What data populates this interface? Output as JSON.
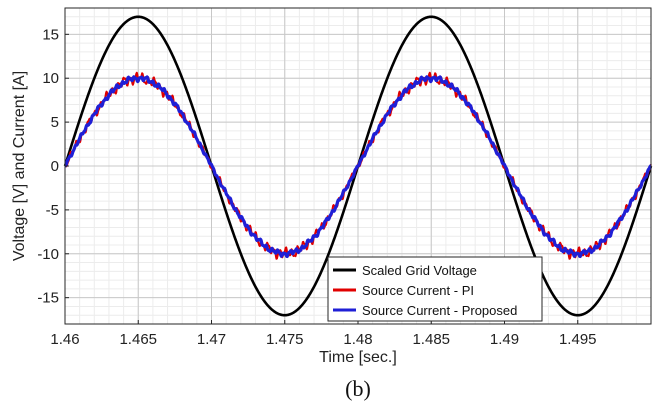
{
  "chart_data": {
    "type": "line",
    "title": "",
    "xlabel": "Time [sec.]",
    "ylabel": "Voltage [V] and Current [A]",
    "xlim": [
      1.46,
      1.5
    ],
    "ylim": [
      -18,
      18
    ],
    "xticks": [
      1.46,
      1.465,
      1.47,
      1.475,
      1.48,
      1.485,
      1.49,
      1.495
    ],
    "xtick_labels": [
      "1.46",
      "1.465",
      "1.47",
      "1.475",
      "1.48",
      "1.485",
      "1.49",
      "1.495"
    ],
    "yticks": [
      -15,
      -10,
      -5,
      0,
      5,
      10,
      15
    ],
    "ytick_labels": [
      "-15",
      "-10",
      "-5",
      "0",
      "5",
      "10",
      "15"
    ],
    "grid": true,
    "minor_grid": true,
    "legend_position": "bottom-right",
    "caption": "(b)",
    "series": [
      {
        "name": "Scaled Grid Voltage",
        "color": "#000000",
        "amplitude": 17,
        "frequency_hz": 50,
        "ripple": 0
      },
      {
        "name": "Source Current - PI",
        "color": "#e00000",
        "amplitude": 10,
        "frequency_hz": 50,
        "ripple": 0.7
      },
      {
        "name": "Source Current - Proposed",
        "color": "#1f1fd6",
        "amplitude": 10,
        "frequency_hz": 50,
        "ripple": 0.35
      }
    ]
  }
}
